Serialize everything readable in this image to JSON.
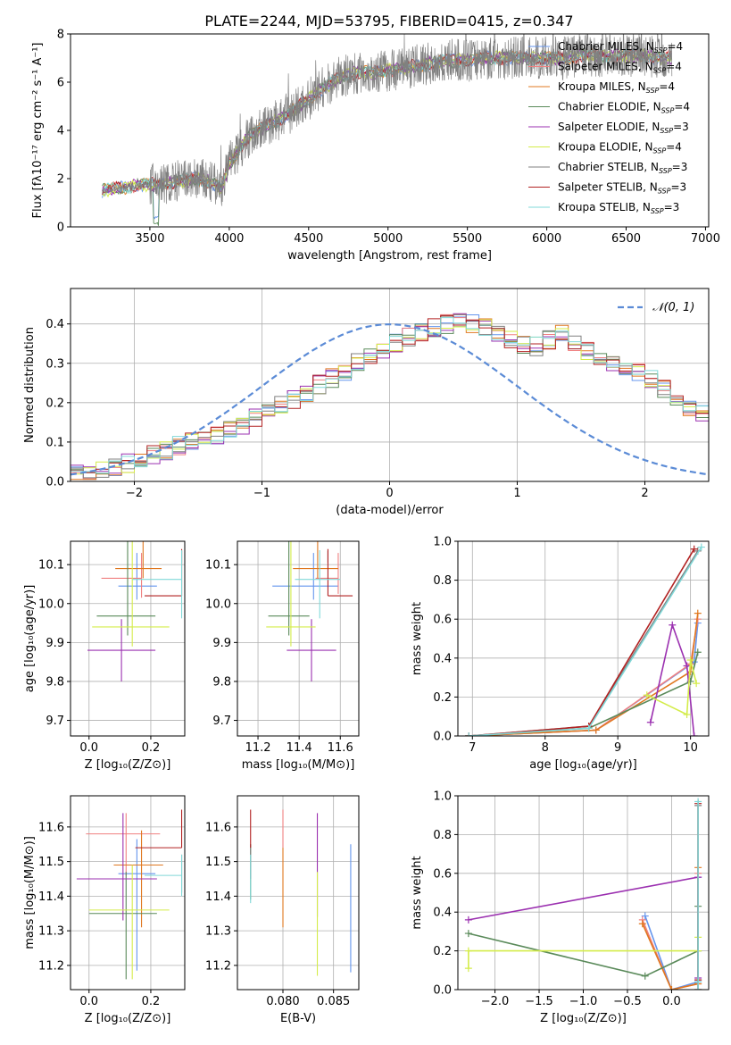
{
  "figure_title": "PLATE=2244, MJD=53795, FIBERID=0415, z=0.347",
  "colors": {
    "Chabrier MILES": "#6495ed",
    "Salpeter MILES": "#f08080",
    "Kroupa MILES": "#e07820",
    "Chabrier ELODIE": "#5a8a5a",
    "Salpeter ELODIE": "#9b30b0",
    "Kroupa ELODIE": "#d4ec4a",
    "Chabrier STELIB": "#808080",
    "Salpeter STELIB": "#b22222",
    "Kroupa STELIB": "#80d8d8"
  },
  "legend_entries": [
    {
      "name": "Chabrier MILES",
      "text": "Chabrier MILES, N",
      "sub": "SSP",
      "suffix": "=4"
    },
    {
      "name": "Salpeter MILES",
      "text": "Salpeter MILES, N",
      "sub": "SSP",
      "suffix": "=4"
    },
    {
      "name": "Kroupa MILES",
      "text": "Kroupa MILES, N",
      "sub": "SSP",
      "suffix": "=4"
    },
    {
      "name": "Chabrier ELODIE",
      "text": "Chabrier ELODIE, N",
      "sub": "SSP",
      "suffix": "=4"
    },
    {
      "name": "Salpeter ELODIE",
      "text": "Salpeter ELODIE, N",
      "sub": "SSP",
      "suffix": "=3"
    },
    {
      "name": "Kroupa ELODIE",
      "text": "Kroupa ELODIE, N",
      "sub": "SSP",
      "suffix": "=4"
    },
    {
      "name": "Chabrier STELIB",
      "text": "Chabrier STELIB, N",
      "sub": "SSP",
      "suffix": "=3"
    },
    {
      "name": "Salpeter STELIB",
      "text": "Salpeter STELIB, N",
      "sub": "SSP",
      "suffix": "=3"
    },
    {
      "name": "Kroupa STELIB",
      "text": "Kroupa STELIB, N",
      "sub": "SSP",
      "suffix": "=3"
    }
  ],
  "chart_data": [
    {
      "id": "spectrum",
      "type": "line",
      "xlabel": "wavelength [Angstrom, rest frame]",
      "ylabel": "Flux [fλ10⁻¹⁷ erg cm⁻² s⁻¹ A⁻¹]",
      "xlim": [
        3000,
        7020
      ],
      "ylim": [
        0,
        8
      ],
      "xticks": [
        3500,
        4000,
        4500,
        5000,
        5500,
        6000,
        6500,
        7000
      ],
      "yticks": [
        0,
        2,
        4,
        6,
        8
      ],
      "grid": false,
      "legend": "upper right",
      "continuum_x": [
        3200,
        3300,
        3400,
        3500,
        3600,
        3700,
        3800,
        3900,
        3950,
        4000,
        4100,
        4200,
        4300,
        4400,
        4500,
        4600,
        4700,
        4800,
        4900,
        5000,
        5100,
        5200,
        5300,
        5400,
        5500,
        5600,
        5700,
        5800,
        5900,
        6000,
        6100,
        6200,
        6300,
        6400,
        6500,
        6600,
        6700,
        6800
      ],
      "continuum_y": [
        1.5,
        1.6,
        1.7,
        1.75,
        1.8,
        1.9,
        2.0,
        1.8,
        1.6,
        2.6,
        3.6,
        4.1,
        4.4,
        4.8,
        5.3,
        5.8,
        6.2,
        6.4,
        6.4,
        6.5,
        6.6,
        6.7,
        6.8,
        6.9,
        6.9,
        7.0,
        7.0,
        7.0,
        7.0,
        7.0,
        7.0,
        7.1,
        7.1,
        7.1,
        7.1,
        7.1,
        7.0,
        7.0
      ]
    },
    {
      "id": "residual_hist",
      "type": "histogram",
      "xlabel": "(data-model)/error",
      "ylabel": "Normed distribution",
      "xlim": [
        -2.5,
        2.5
      ],
      "ylim": [
        0,
        0.49
      ],
      "xticks": [
        -2,
        -1,
        0,
        1,
        2
      ],
      "yticks": [
        0.0,
        0.1,
        0.2,
        0.3,
        0.4
      ],
      "grid": true,
      "legend": "upper right",
      "reference_curve": "N(0,1)",
      "reference_label": "𝒩(0, 1)",
      "bin_width": 0.1,
      "bin_start": -2.5,
      "base_values": [
        0.02,
        0.022,
        0.028,
        0.034,
        0.045,
        0.055,
        0.068,
        0.08,
        0.092,
        0.1,
        0.11,
        0.118,
        0.13,
        0.145,
        0.16,
        0.178,
        0.196,
        0.21,
        0.226,
        0.245,
        0.262,
        0.28,
        0.3,
        0.318,
        0.335,
        0.352,
        0.368,
        0.382,
        0.392,
        0.4,
        0.41,
        0.402,
        0.39,
        0.376,
        0.36,
        0.35,
        0.342,
        0.36,
        0.372,
        0.35,
        0.33,
        0.305,
        0.3,
        0.295,
        0.28,
        0.262,
        0.235,
        0.21,
        0.19,
        0.17
      ]
    },
    {
      "id": "age_vs_Z",
      "type": "scatter",
      "xlabel": "Z [log₁₀(Z/Z⊙)]",
      "ylabel": "age  [log₁₀(age/yr)]",
      "xlim": [
        -0.06,
        0.31
      ],
      "ylim": [
        9.66,
        10.16
      ],
      "xticks": [
        0.0,
        0.2
      ],
      "yticks": [
        9.7,
        9.8,
        9.9,
        10.0,
        10.1
      ],
      "grid": true,
      "points": [
        {
          "series": "Chabrier MILES",
          "x": 0.155,
          "xerr": [
            0.06,
            0.065
          ],
          "y": 10.045,
          "yerr": [
            0.035,
            0.085
          ]
        },
        {
          "series": "Salpeter MILES",
          "x": 0.17,
          "xerr": [
            0.13,
            0.0
          ],
          "y": 10.065,
          "yerr": [
            0.05,
            0.065
          ]
        },
        {
          "series": "Kroupa MILES",
          "x": 0.175,
          "xerr": [
            0.09,
            0.06
          ],
          "y": 10.09,
          "yerr": [
            0.025,
            0.13
          ]
        },
        {
          "series": "Chabrier ELODIE",
          "x": 0.125,
          "xerr": [
            0.1,
            0.09
          ],
          "y": 9.968,
          "yerr": [
            0.05,
            0.25
          ]
        },
        {
          "series": "Salpeter ELODIE",
          "x": 0.105,
          "xerr": [
            0.11,
            0.11
          ],
          "y": 9.88,
          "yerr": [
            0.08,
            0.08
          ]
        },
        {
          "series": "Kroupa ELODIE",
          "x": 0.14,
          "xerr": [
            0.13,
            0.12
          ],
          "y": 9.94,
          "yerr": [
            0.05,
            0.24
          ]
        },
        {
          "series": "Chabrier STELIB",
          "x": 0.3,
          "xerr": [
            0.0,
            0.0
          ],
          "y": 10.12,
          "yerr": [
            0.015,
            0.015
          ]
        },
        {
          "series": "Salpeter STELIB",
          "x": 0.3,
          "xerr": [
            0.12,
            0.0
          ],
          "y": 10.02,
          "yerr": [
            0.0,
            0.12
          ]
        },
        {
          "series": "Kroupa STELIB",
          "x": 0.3,
          "xerr": [
            0.16,
            0.0
          ],
          "y": 10.062,
          "yerr": [
            0.1,
            0.075
          ]
        }
      ]
    },
    {
      "id": "age_vs_mass",
      "type": "scatter",
      "xlabel": "mass [log₁₀(M/M⊙)]",
      "ylabel": "",
      "xlim": [
        11.1,
        11.69
      ],
      "ylim": [
        9.66,
        10.16
      ],
      "xticks": [
        11.2,
        11.4,
        11.6
      ],
      "yticks": [
        9.7,
        9.8,
        9.9,
        10.0,
        10.1
      ],
      "grid": true,
      "points": [
        {
          "series": "Chabrier MILES",
          "x": 11.47,
          "xerr": [
            0.2,
            0.12
          ],
          "y": 10.045,
          "yerr": [
            0.035,
            0.085
          ]
        },
        {
          "series": "Salpeter MILES",
          "x": 11.59,
          "xerr": [
            0.11,
            0.0
          ],
          "y": 10.065,
          "yerr": [
            0.04,
            0.065
          ]
        },
        {
          "series": "Kroupa MILES",
          "x": 11.49,
          "xerr": [
            0.12,
            0.1
          ],
          "y": 10.09,
          "yerr": [
            0.025,
            0.13
          ]
        },
        {
          "series": "Chabrier ELODIE",
          "x": 11.35,
          "xerr": [
            0.1,
            0.1
          ],
          "y": 9.968,
          "yerr": [
            0.05,
            0.25
          ]
        },
        {
          "series": "Salpeter ELODIE",
          "x": 11.46,
          "xerr": [
            0.12,
            0.12
          ],
          "y": 9.88,
          "yerr": [
            0.08,
            0.08
          ]
        },
        {
          "series": "Kroupa ELODIE",
          "x": 11.36,
          "xerr": [
            0.12,
            0.12
          ],
          "y": 9.94,
          "yerr": [
            0.05,
            0.24
          ]
        },
        {
          "series": "Chabrier STELIB",
          "x": 11.54,
          "xerr": [
            0.0,
            0.0
          ],
          "y": 10.12,
          "yerr": [
            0.015,
            0.015
          ]
        },
        {
          "series": "Salpeter STELIB",
          "x": 11.54,
          "xerr": [
            0.0,
            0.12
          ],
          "y": 10.02,
          "yerr": [
            0.0,
            0.12
          ]
        },
        {
          "series": "Kroupa STELIB",
          "x": 11.5,
          "xerr": [
            0.12,
            0.1
          ],
          "y": 10.062,
          "yerr": [
            0.1,
            0.075
          ]
        }
      ]
    },
    {
      "id": "mass_weight_vs_age",
      "type": "line",
      "xlabel": "age  [log₁₀(age/yr)]",
      "ylabel": "mass weight",
      "xlim": [
        6.8,
        10.25
      ],
      "ylim": [
        0,
        1.0
      ],
      "xticks": [
        7,
        8,
        9,
        10
      ],
      "yticks": [
        0.0,
        0.2,
        0.4,
        0.6,
        0.8,
        1.0
      ],
      "grid": true,
      "series": [
        {
          "name": "Chabrier MILES",
          "x": [
            6.95,
            8.7,
            10.05,
            10.1
          ],
          "y": [
            0.0,
            0.03,
            0.38,
            0.58
          ]
        },
        {
          "name": "Salpeter MILES",
          "x": [
            6.95,
            8.7,
            10.0,
            10.1
          ],
          "y": [
            0.0,
            0.03,
            0.37,
            0.6
          ]
        },
        {
          "name": "Kroupa MILES",
          "x": [
            6.95,
            8.7,
            10.0,
            10.1
          ],
          "y": [
            0.0,
            0.03,
            0.33,
            0.63
          ]
        },
        {
          "name": "Chabrier ELODIE",
          "x": [
            6.95,
            8.6,
            10.0,
            10.1
          ],
          "y": [
            0.0,
            0.04,
            0.28,
            0.43
          ]
        },
        {
          "name": "Salpeter ELODIE",
          "x": [
            9.45,
            9.75,
            9.95,
            10.05
          ],
          "y": [
            0.07,
            0.57,
            0.36,
            0.0
          ]
        },
        {
          "name": "Kroupa ELODIE",
          "x": [
            9.4,
            9.95,
            10.0,
            10.08
          ],
          "y": [
            0.21,
            0.11,
            0.39,
            0.27
          ]
        },
        {
          "name": "Chabrier STELIB",
          "x": [
            6.95,
            8.6,
            10.1
          ],
          "y": [
            0.0,
            0.05,
            0.95
          ]
        },
        {
          "name": "Salpeter STELIB",
          "x": [
            6.95,
            8.6,
            10.05
          ],
          "y": [
            0.0,
            0.05,
            0.96
          ]
        },
        {
          "name": "Kroupa STELIB",
          "x": [
            6.95,
            8.6,
            10.15
          ],
          "y": [
            0.0,
            0.04,
            0.97
          ]
        }
      ]
    },
    {
      "id": "mass_vs_Z",
      "type": "scatter",
      "xlabel": "Z [log₁₀(Z/Z⊙)]",
      "ylabel": "mass [log₁₀(M/M⊙)]",
      "xlim": [
        -0.06,
        0.31
      ],
      "ylim": [
        11.13,
        11.69
      ],
      "xticks": [
        0.0,
        0.2
      ],
      "yticks": [
        11.2,
        11.3,
        11.4,
        11.5,
        11.6
      ],
      "grid": true,
      "points": [
        {
          "series": "Chabrier MILES",
          "x": 0.155,
          "xerr": [
            0.06,
            0.06
          ],
          "y": 11.465,
          "yerr": [
            0.28,
            0.1
          ]
        },
        {
          "series": "Salpeter MILES",
          "x": 0.12,
          "xerr": [
            0.13,
            0.11
          ],
          "y": 11.58,
          "yerr": [
            0.12,
            0.06
          ]
        },
        {
          "series": "Kroupa MILES",
          "x": 0.17,
          "xerr": [
            0.09,
            0.07
          ],
          "y": 11.49,
          "yerr": [
            0.18,
            0.1
          ]
        },
        {
          "series": "Chabrier ELODIE",
          "x": 0.12,
          "xerr": [
            0.12,
            0.1
          ],
          "y": 11.35,
          "yerr": [
            0.19,
            0.12
          ]
        },
        {
          "series": "Salpeter ELODIE",
          "x": 0.11,
          "xerr": [
            0.15,
            0.11
          ],
          "y": 11.45,
          "yerr": [
            0.12,
            0.19
          ]
        },
        {
          "series": "Kroupa ELODIE",
          "x": 0.14,
          "xerr": [
            0.14,
            0.12
          ],
          "y": 11.36,
          "yerr": [
            0.2,
            0.13
          ]
        },
        {
          "series": "Chabrier STELIB",
          "x": 0.3,
          "xerr": [
            0.0,
            0.0
          ],
          "y": 11.44,
          "yerr": [
            0.03,
            0.08
          ]
        },
        {
          "series": "Salpeter STELIB",
          "x": 0.3,
          "xerr": [
            0.15,
            0.0
          ],
          "y": 11.54,
          "yerr": [
            0.0,
            0.11
          ]
        },
        {
          "series": "Kroupa STELIB",
          "x": 0.3,
          "xerr": [
            0.12,
            0.0
          ],
          "y": 11.46,
          "yerr": [
            0.06,
            0.06
          ]
        }
      ]
    },
    {
      "id": "mass_vs_EBV",
      "type": "scatter",
      "xlabel": "E(B-V)",
      "ylabel": "",
      "xlim": [
        0.0755,
        0.0875
      ],
      "ylim": [
        11.13,
        11.69
      ],
      "xticks": [
        0.08,
        0.085
      ],
      "yticks": [
        11.2,
        11.3,
        11.4,
        11.5,
        11.6
      ],
      "grid": true,
      "points": [
        {
          "series": "Chabrier MILES",
          "x": 0.0867,
          "y": 11.37,
          "yerr": [
            0.19,
            0.18
          ]
        },
        {
          "series": "Salpeter MILES",
          "x": 0.08,
          "y": 11.54,
          "yerr": [
            0.0,
            0.11
          ]
        },
        {
          "series": "Kroupa MILES",
          "x": 0.08,
          "y": 11.42,
          "yerr": [
            0.11,
            0.12
          ]
        },
        {
          "series": "Chabrier ELODIE",
          "x": 0.0768,
          "y": 11.45,
          "yerr": [
            0.06,
            0.1
          ]
        },
        {
          "series": "Salpeter ELODIE",
          "x": 0.0834,
          "y": 11.49,
          "yerr": [
            0.15,
            0.15
          ]
        },
        {
          "series": "Kroupa ELODIE",
          "x": 0.0834,
          "y": 11.35,
          "yerr": [
            0.18,
            0.12
          ]
        },
        {
          "series": "Chabrier STELIB",
          "x": 0.0768,
          "y": 11.5,
          "yerr": [
            0.05,
            0.05
          ]
        },
        {
          "series": "Salpeter STELIB",
          "x": 0.0768,
          "y": 11.54,
          "yerr": [
            0.0,
            0.11
          ]
        },
        {
          "series": "Kroupa STELIB",
          "x": 0.0768,
          "y": 11.46,
          "yerr": [
            0.08,
            0.06
          ]
        }
      ]
    },
    {
      "id": "mass_weight_vs_Z",
      "type": "line",
      "xlabel": "Z [log₁₀(Z/Z⊙)]",
      "ylabel": "mass weight",
      "xlim": [
        -2.42,
        0.42
      ],
      "ylim": [
        0,
        1.0
      ],
      "xticks": [
        -2.0,
        -1.5,
        -1.0,
        -0.5,
        0.0
      ],
      "yticks": [
        0.0,
        0.2,
        0.4,
        0.6,
        0.8,
        1.0
      ],
      "grid": true,
      "series": [
        {
          "name": "Chabrier MILES",
          "x": [
            -0.3,
            0.0,
            0.3,
            0.3
          ],
          "y": [
            0.38,
            0.0,
            0.04,
            0.58
          ]
        },
        {
          "name": "Salpeter MILES",
          "x": [
            -0.33,
            0.0,
            0.3,
            0.3
          ],
          "y": [
            0.36,
            0.0,
            0.03,
            0.6
          ]
        },
        {
          "name": "Kroupa MILES",
          "x": [
            -0.33,
            0.0,
            0.3,
            0.3
          ],
          "y": [
            0.34,
            0.0,
            0.03,
            0.63
          ]
        },
        {
          "name": "Chabrier ELODIE",
          "x": [
            -2.3,
            -0.3,
            0.3,
            0.3
          ],
          "y": [
            0.29,
            0.07,
            0.2,
            0.43
          ]
        },
        {
          "name": "Salpeter ELODIE",
          "x": [
            -2.3,
            0.3,
            0.3
          ],
          "y": [
            0.36,
            0.58,
            0.06
          ]
        },
        {
          "name": "Kroupa ELODIE",
          "x": [
            -2.3,
            -2.3,
            0.3,
            0.3
          ],
          "y": [
            0.11,
            0.2,
            0.2,
            0.27
          ]
        },
        {
          "name": "Chabrier STELIB",
          "x": [
            0.3,
            0.3,
            0.3
          ],
          "y": [
            0.0,
            0.05,
            0.95
          ]
        },
        {
          "name": "Salpeter STELIB",
          "x": [
            0.3,
            0.3,
            0.3
          ],
          "y": [
            0.0,
            0.05,
            0.96
          ]
        },
        {
          "name": "Kroupa STELIB",
          "x": [
            0.3,
            0.3,
            0.3
          ],
          "y": [
            0.0,
            0.04,
            0.97
          ]
        }
      ]
    }
  ]
}
